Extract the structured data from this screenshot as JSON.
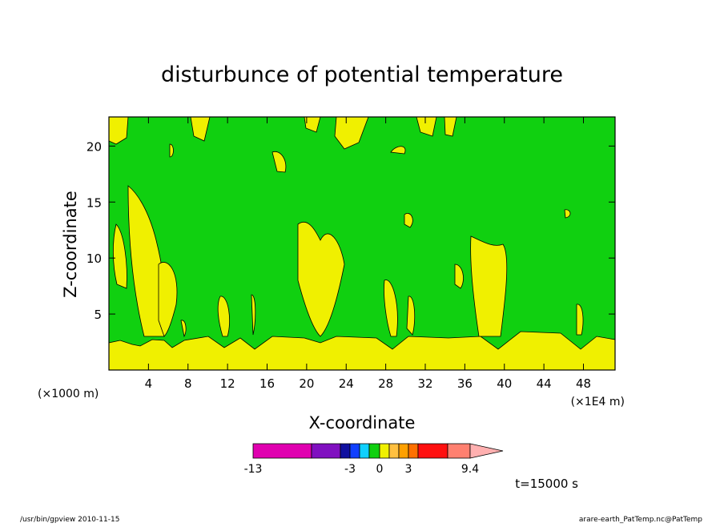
{
  "chart_data": {
    "type": "contour",
    "title": "disturbunce of potential temperature",
    "x_label": "X-coordinate",
    "y_label": "Z-coordinate",
    "x_unit_label": "(×1E4 m)",
    "x_scale_label": "(×1000 m)",
    "xlim": [
      0,
      51.2
    ],
    "xticks": [
      4,
      8,
      12,
      16,
      20,
      24,
      28,
      32,
      36,
      40,
      44,
      48
    ],
    "ylim": [
      0,
      22.6
    ],
    "yticks": [
      5,
      10,
      15,
      20
    ],
    "colorbar": {
      "colors": [
        "#e000b0",
        "#8010c0",
        "#1010a0",
        "#1040ff",
        "#10d0ff",
        "#10d010",
        "#f0f000",
        "#ffc040",
        "#ffa000",
        "#ff7000",
        "#ff1010",
        "#ff8070",
        "#ffb0b0"
      ],
      "ticks": [
        -13,
        -3,
        0,
        3,
        9.4
      ]
    },
    "time_label": "t=15000 s",
    "footer_left": "/usr/bin/gpview   2010-11-15",
    "footer_right": "arare-earth_PatTemp.nc@PatTemp"
  }
}
